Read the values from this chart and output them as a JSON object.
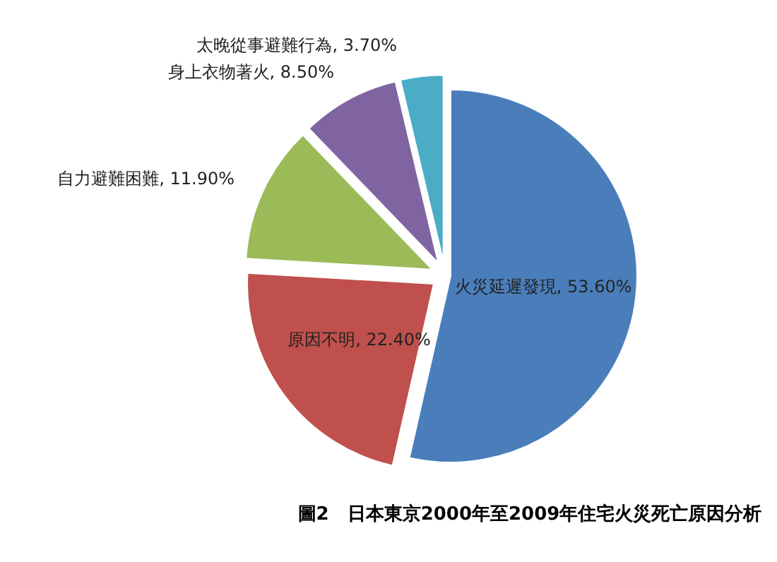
{
  "chart_data": {
    "type": "pie",
    "title": "圖2　日本東京2000年至2009年住宅火災死亡原因分析",
    "categories": [
      "火災延遲發現",
      "原因不明",
      "自力避難困難",
      "身上衣物著火",
      "太晚從事避難行為"
    ],
    "values": [
      53.6,
      22.4,
      11.9,
      8.5,
      3.7
    ],
    "value_labels": [
      "53.60%",
      "22.40%",
      "11.90%",
      "8.50%",
      "3.70%"
    ],
    "colors": [
      "#4a7ebb",
      "#c0504d",
      "#9bbb59",
      "#8064a2",
      "#4bacc6"
    ]
  }
}
